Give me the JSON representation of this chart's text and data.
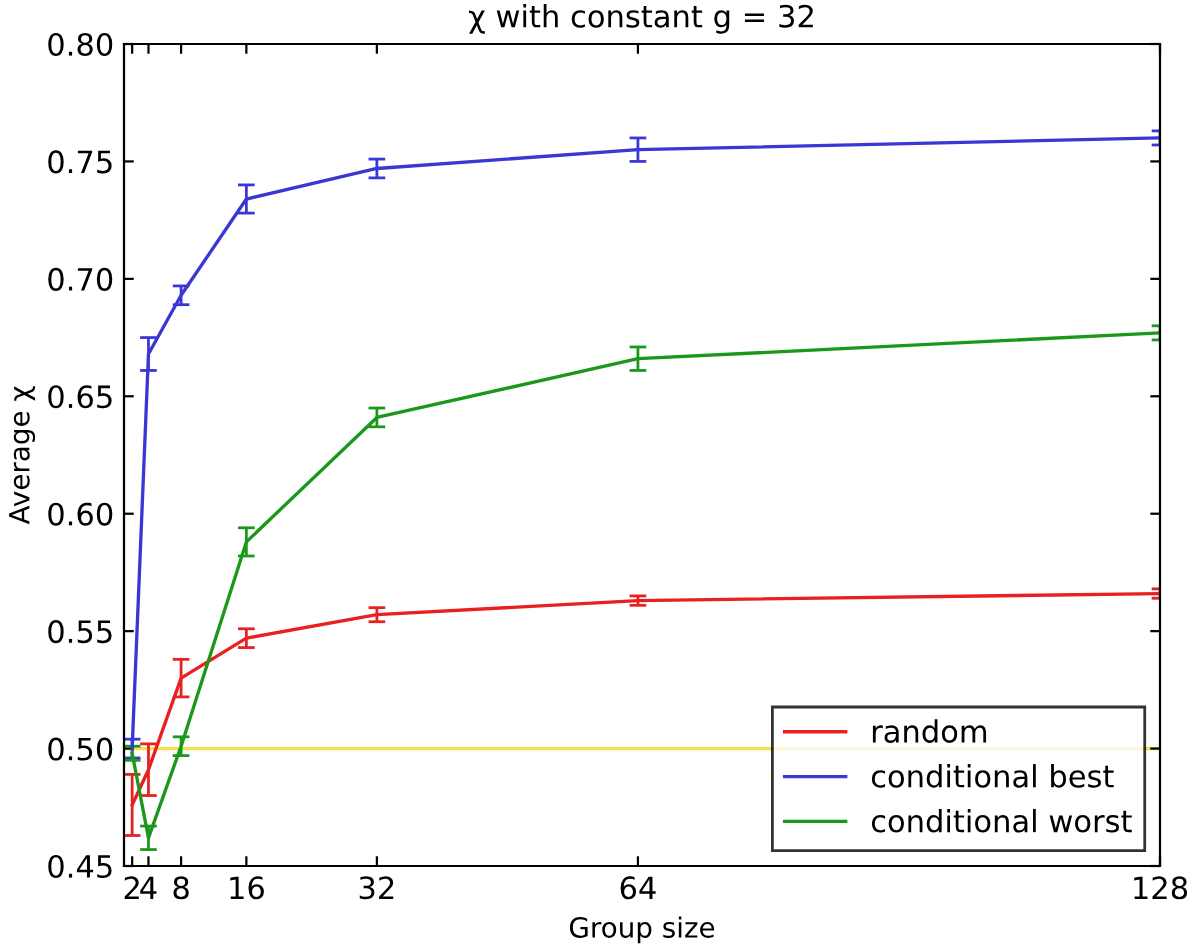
{
  "chart_data": {
    "type": "line",
    "title": "χ with constant g = 32",
    "xlabel": "Group size",
    "ylabel": "Average χ",
    "x": [
      2,
      4,
      8,
      16,
      32,
      64,
      128
    ],
    "series": [
      {
        "name": "random",
        "color": "#e82020",
        "values": [
          0.476,
          0.491,
          0.53,
          0.547,
          0.557,
          0.563,
          0.566
        ],
        "errors": [
          0.013,
          0.011,
          0.008,
          0.004,
          0.003,
          0.002,
          0.002
        ]
      },
      {
        "name": "conditional best",
        "color": "#3b36d4",
        "values": [
          0.5,
          0.668,
          0.693,
          0.734,
          0.747,
          0.755,
          0.76
        ],
        "errors": [
          0.004,
          0.007,
          0.004,
          0.006,
          0.004,
          0.005,
          0.003
        ]
      },
      {
        "name": "conditional worst",
        "color": "#1b981b",
        "values": [
          0.498,
          0.462,
          0.501,
          0.588,
          0.641,
          0.666,
          0.677
        ],
        "errors": [
          0.003,
          0.005,
          0.004,
          0.006,
          0.004,
          0.005,
          0.003
        ]
      }
    ],
    "ref_lines": [
      {
        "axis": "y",
        "value": 0.5,
        "color": "#f5e04a"
      }
    ],
    "xlim": [
      1,
      128
    ],
    "ylim": [
      0.45,
      0.8
    ],
    "xticks": [
      {
        "value": 2,
        "label": "2"
      },
      {
        "value": 4,
        "label": "4"
      },
      8,
      16,
      32,
      64,
      128
    ],
    "yticks": [
      {
        "value": 0.45,
        "label": "0.45"
      },
      {
        "value": 0.5,
        "label": "0.50"
      },
      {
        "value": 0.55,
        "label": "0.55"
      },
      {
        "value": 0.6,
        "label": "0.60"
      },
      {
        "value": 0.65,
        "label": "0.65"
      },
      {
        "value": 0.7,
        "label": "0.70"
      },
      {
        "value": 0.75,
        "label": "0.75"
      },
      {
        "value": 0.8,
        "label": "0.80"
      }
    ],
    "grid": false,
    "legend": "bottom right",
    "marker": "none",
    "line_style": "solid"
  }
}
